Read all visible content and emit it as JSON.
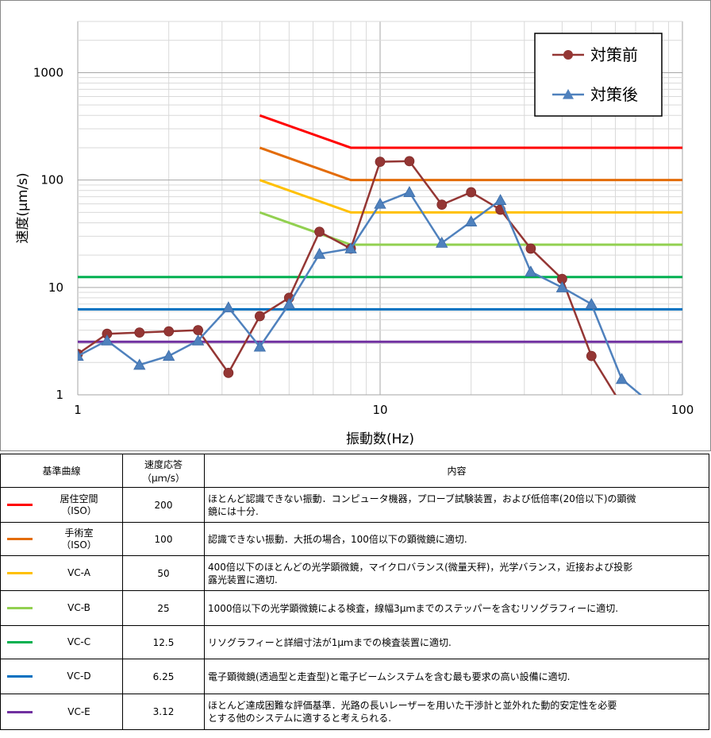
{
  "chart_data": {
    "type": "line",
    "xscale": "log",
    "yscale": "log",
    "xlim": [
      1,
      100
    ],
    "ylim": [
      1,
      3000
    ],
    "xlabel": "振動数(Hz)",
    "ylabel": "速度(μm/s)",
    "xticks": [
      "1",
      "10",
      "100"
    ],
    "yticks": [
      "1",
      "10",
      "100",
      "1000"
    ],
    "grid": true,
    "legend_position": "top-right",
    "series": [
      {
        "name": "対策前",
        "color": "#943634",
        "marker": "circle",
        "x": [
          1,
          1.25,
          1.6,
          2,
          2.5,
          3.15,
          4,
          5,
          6.3,
          8,
          10,
          12.5,
          16,
          20,
          25,
          31.5,
          40,
          50,
          63
        ],
        "y": [
          2.4,
          3.7,
          3.8,
          3.9,
          4.0,
          1.6,
          5.4,
          8.0,
          33,
          23,
          148,
          150,
          59,
          77,
          53,
          23,
          12,
          2.3,
          0.8
        ]
      },
      {
        "name": "対策後",
        "color": "#4f81bd",
        "marker": "triangle",
        "x": [
          1,
          1.25,
          1.6,
          2,
          2.5,
          3.15,
          4,
          5,
          6.3,
          8,
          10,
          12.5,
          16,
          20,
          25,
          31.5,
          40,
          50,
          63,
          80
        ],
        "y": [
          2.3,
          3.2,
          1.9,
          2.3,
          3.2,
          6.5,
          2.8,
          7.0,
          20.5,
          23,
          60,
          77,
          26,
          41,
          65,
          14,
          10,
          7,
          1.4,
          0.8
        ]
      }
    ],
    "criteria_lines": [
      {
        "name": "居住空間(ISO)",
        "color": "#ff0000",
        "x": [
          4,
          8,
          100
        ],
        "y": [
          400,
          200,
          200
        ]
      },
      {
        "name": "手術室(ISO)",
        "color": "#e36c09",
        "x": [
          4,
          8,
          100
        ],
        "y": [
          200,
          100,
          100
        ]
      },
      {
        "name": "VC-A",
        "color": "#ffc000",
        "x": [
          4,
          8,
          100
        ],
        "y": [
          100,
          50,
          50
        ]
      },
      {
        "name": "VC-B",
        "color": "#92d050",
        "x": [
          4,
          8,
          100
        ],
        "y": [
          50,
          25,
          25
        ]
      },
      {
        "name": "VC-C",
        "color": "#00b050",
        "x": [
          1,
          100
        ],
        "y": [
          12.5,
          12.5
        ]
      },
      {
        "name": "VC-D",
        "color": "#0070c0",
        "x": [
          1,
          100
        ],
        "y": [
          6.25,
          6.25
        ]
      },
      {
        "name": "VC-E",
        "color": "#7030a0",
        "x": [
          1,
          100
        ],
        "y": [
          3.12,
          3.12
        ]
      }
    ]
  },
  "table": {
    "headers": {
      "curve": "基準曲線",
      "velocity_line1": "速度応答",
      "velocity_line2": "（μｍ/s）",
      "content": "内容"
    },
    "rows": [
      {
        "name_line1": "居住空間",
        "name_line2": "（ISO）",
        "color": "#ff0000",
        "velocity": "200",
        "desc_line1": "ほとんど認識できない振動．コンピュータ機器，プローブ試験装置，および低倍率(20倍以下)の顕微",
        "desc_line2": "鏡には十分."
      },
      {
        "name_line1": "手術室",
        "name_line2": "（ISO）",
        "color": "#e36c09",
        "velocity": "100",
        "desc_line1": "認識できない振動．大抵の場合，100倍以下の顕微鏡に適切.",
        "desc_line2": ""
      },
      {
        "name_line1": "VC-A",
        "name_line2": "",
        "color": "#ffc000",
        "velocity": "50",
        "desc_line1": "400倍以下のほとんどの光学顕微鏡，マイクロバランス(微量天秤)，光学バランス，近接および投影",
        "desc_line2": "露光装置に適切."
      },
      {
        "name_line1": "VC-B",
        "name_line2": "",
        "color": "#92d050",
        "velocity": "25",
        "desc_line1": "1000倍以下の光学顕微鏡による検査，線幅3μｍまでのステッパーを含むリソグラフィーに適切.",
        "desc_line2": ""
      },
      {
        "name_line1": "VC-C",
        "name_line2": "",
        "color": "#00b050",
        "velocity": "12.5",
        "desc_line1": "リソグラフィーと詳細寸法が1μｍまでの検査装置に適切.",
        "desc_line2": ""
      },
      {
        "name_line1": "VC-D",
        "name_line2": "",
        "color": "#0070c0",
        "velocity": "6.25",
        "desc_line1": "電子顕微鏡(透過型と走査型)と電子ビームシステムを含む最も要求の高い設備に適切.",
        "desc_line2": ""
      },
      {
        "name_line1": "VC-E",
        "name_line2": "",
        "color": "#7030a0",
        "velocity": "3.12",
        "desc_line1": "ほとんど達成困難な評価基準．光路の長いレーザーを用いた干渉計と並外れた動的安定性を必要",
        "desc_line2": "とする他のシステムに適すると考えられる."
      }
    ]
  }
}
